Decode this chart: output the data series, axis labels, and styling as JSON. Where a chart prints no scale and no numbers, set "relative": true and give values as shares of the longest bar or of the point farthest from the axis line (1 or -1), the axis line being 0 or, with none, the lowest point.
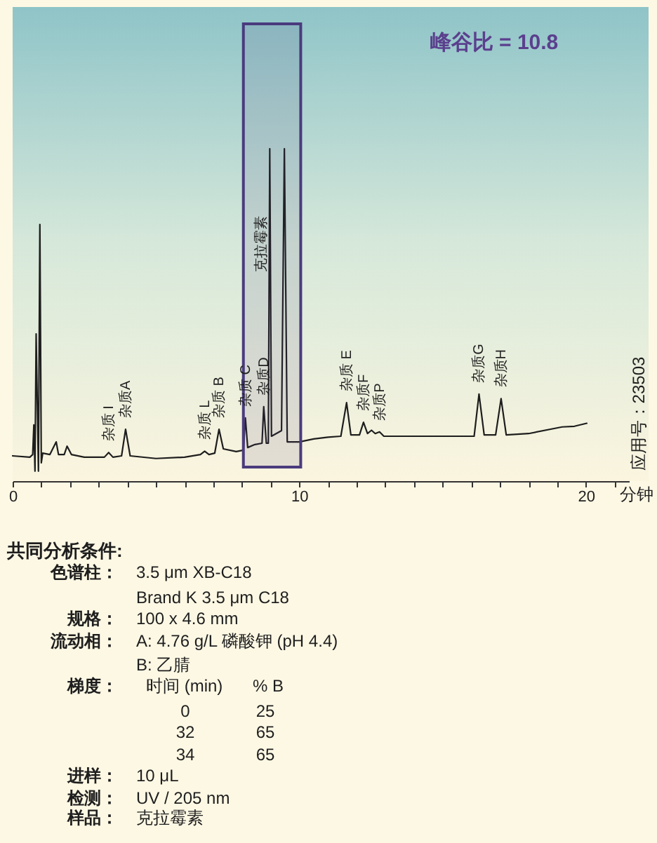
{
  "chart_data": {
    "type": "line",
    "relative": true,
    "xlabel": "分钟",
    "xlim": [
      0,
      21.5
    ],
    "xticks": [
      0,
      {
        "value": 1,
        "label": null
      },
      {
        "value": 2,
        "label": null
      },
      {
        "value": 3,
        "label": null
      },
      {
        "value": 4,
        "label": null
      },
      {
        "value": 5,
        "label": null
      },
      {
        "value": 6,
        "label": null
      },
      {
        "value": 7,
        "label": null
      },
      {
        "value": 8,
        "label": null
      },
      {
        "value": 9,
        "label": null
      },
      10,
      {
        "value": 11,
        "label": null
      },
      {
        "value": 12,
        "label": null
      },
      {
        "value": 13,
        "label": null
      },
      {
        "value": 14,
        "label": null
      },
      {
        "value": 15,
        "label": null
      },
      {
        "value": 16,
        "label": null
      },
      {
        "value": 17,
        "label": null
      },
      {
        "value": 18,
        "label": null
      },
      {
        "value": 19,
        "label": null
      },
      20,
      {
        "value": 21,
        "label": null
      }
    ],
    "x": [
      0,
      0.6,
      0.7,
      0.74,
      0.78,
      0.82,
      0.9,
      0.95,
      1.0,
      1.05,
      1.3,
      1.52,
      1.6,
      1.8,
      1.9,
      2.05,
      2.5,
      3.2,
      3.35,
      3.5,
      3.8,
      3.94,
      4.1,
      5.0,
      6.0,
      6.55,
      6.7,
      6.85,
      7.05,
      7.2,
      7.35,
      7.8,
      8.05,
      8.12,
      8.2,
      8.45,
      8.7,
      8.76,
      8.85,
      8.92,
      8.97,
      9.03,
      9.38,
      9.48,
      9.58,
      10.0,
      10.5,
      11.0,
      11.45,
      11.65,
      11.8,
      12.1,
      12.24,
      12.38,
      12.52,
      12.65,
      12.8,
      12.95,
      14.0,
      15.5,
      16.1,
      16.27,
      16.45,
      16.85,
      17.04,
      17.22,
      18.0,
      19.17,
      19.6,
      20.03
    ],
    "series": [
      {
        "color": "#1e1e1e",
        "values": [
          0.076,
          0.072,
          0.08,
          0.169,
          0.03,
          0.443,
          0.03,
          0.772,
          0.055,
          0.084,
          0.08,
          0.118,
          0.08,
          0.08,
          0.105,
          0.08,
          0.072,
          0.072,
          0.086,
          0.072,
          0.076,
          0.156,
          0.076,
          0.068,
          0.072,
          0.08,
          0.09,
          0.08,
          0.084,
          0.156,
          0.097,
          0.089,
          0.093,
          0.19,
          0.101,
          0.11,
          0.114,
          0.224,
          0.114,
          0.114,
          1.0,
          0.135,
          0.152,
          1.0,
          0.118,
          0.118,
          0.127,
          0.132,
          0.135,
          0.236,
          0.139,
          0.139,
          0.177,
          0.143,
          0.153,
          0.143,
          0.148,
          0.135,
          0.135,
          0.135,
          0.135,
          0.262,
          0.139,
          0.139,
          0.248,
          0.139,
          0.143,
          0.163,
          0.165,
          0.174
        ]
      }
    ],
    "bands": [
      {
        "axis": "x",
        "from": 8.05,
        "to": 10.05,
        "color": "#4a3b7e"
      }
    ],
    "annotations": [
      {
        "text": "杂质 I",
        "x": 3.35,
        "y": 0.086
      },
      {
        "text": "杂质A",
        "x": 3.94,
        "y": 0.156
      },
      {
        "text": "杂质 L",
        "x": 6.7,
        "y": 0.09
      },
      {
        "text": "杂质 B",
        "x": 7.2,
        "y": 0.156
      },
      {
        "text": "杂质 C",
        "x": 8.12,
        "y": 0.19
      },
      {
        "text": "杂质D",
        "x": 8.76,
        "y": 0.224
      },
      {
        "text": "杂质 E",
        "x": 11.65,
        "y": 0.236
      },
      {
        "text": "杂质F",
        "x": 12.24,
        "y": 0.177
      },
      {
        "text": "杂质P",
        "x": 12.8,
        "y": 0.148
      },
      {
        "text": "杂质G",
        "x": 16.27,
        "y": 0.262
      },
      {
        "text": "杂质H",
        "x": 17.04,
        "y": 0.248
      },
      "克拉霉素",
      "峰谷比 = 10.8",
      "应用号：23503",
      "共同分析条件:",
      "色谱柱：",
      "3.5 μm XB-C18",
      "Brand K 3.5 μm C18",
      "规格：",
      "100 x 4.6 mm",
      "流动相：",
      "A: 4.76 g/L 磷酸钾 (pH 4.4)",
      "B: 乙腈",
      "梯度：",
      "时间 (min)",
      "% B",
      "0",
      "25",
      "32",
      "65",
      "34",
      "65",
      "进样：",
      "10 μL",
      "检测：",
      "UV / 205 nm",
      "样品：",
      "克拉霉素"
    ]
  }
}
